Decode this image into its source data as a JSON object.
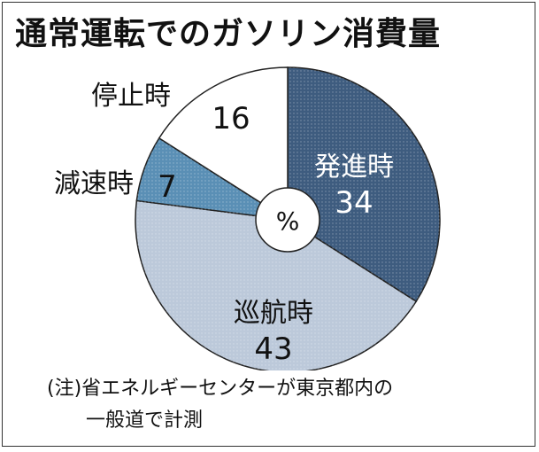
{
  "title": "通常運転でのガソリン消費量",
  "note": {
    "line1": "(注)省エネルギーセンターが東京都内の",
    "line2": "一般道で計測"
  },
  "chart_data": {
    "type": "pie",
    "center_label": "%",
    "slices": [
      {
        "label": "発進時",
        "value": 34,
        "color": "#3e5c7f",
        "text_color": "#ffffff",
        "label_position": "inside"
      },
      {
        "label": "巡航時",
        "value": 43,
        "color": "#bcc9da",
        "text_color": "#111111",
        "label_position": "inside"
      },
      {
        "label": "減速時",
        "value": 7,
        "color": "#5a8fb5",
        "text_color": "#111111",
        "label_position": "outside"
      },
      {
        "label": "停止時",
        "value": 16,
        "color": "#ffffff",
        "text_color": "#111111",
        "label_position": "outside"
      }
    ]
  }
}
